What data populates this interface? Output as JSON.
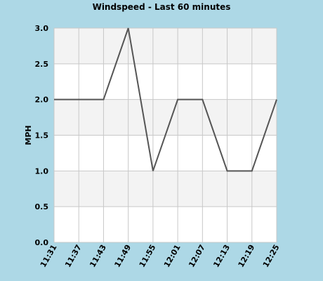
{
  "chart_data": {
    "type": "line",
    "title": "Windspeed - Last 60 minutes",
    "xlabel": "",
    "ylabel": "MPH",
    "categories": [
      "11:31",
      "11:37",
      "11:43",
      "11:49",
      "11:55",
      "12:01",
      "12:07",
      "12:13",
      "12:19",
      "12:25"
    ],
    "series": [
      {
        "values": [
          2.0,
          2.0,
          2.0,
          3.0,
          1.0,
          2.0,
          2.0,
          1.0,
          1.0,
          2.0
        ]
      }
    ],
    "ylim": [
      0,
      3
    ],
    "yticks": [
      "0.0",
      "0.5",
      "1.0",
      "1.5",
      "2.0",
      "2.5",
      "3.0"
    ],
    "grid": true,
    "legend": "none",
    "colors": {
      "background": "#add8e6",
      "plot_band_light": "#ffffff",
      "plot_band_dark": "#f3f3f3",
      "grid": "#c8c8c8",
      "line": "#555555"
    }
  }
}
